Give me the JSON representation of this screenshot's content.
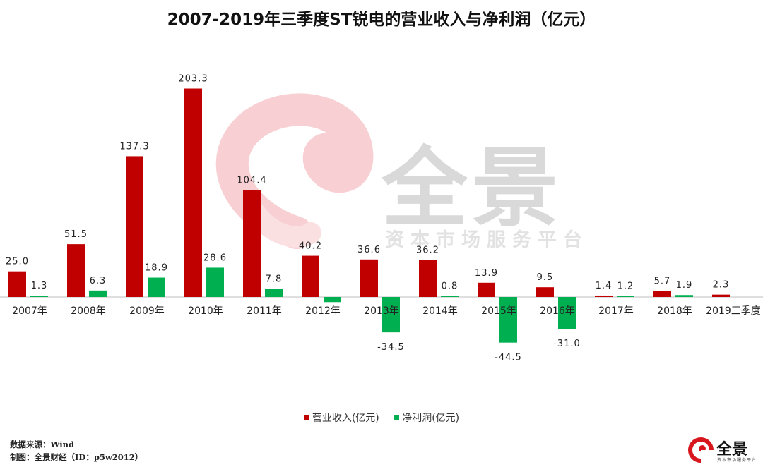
{
  "title": "2007-2019年三季度ST锐电的营业收入与净利润（亿元）",
  "watermark": {
    "brand": "全景",
    "subtitle": "资本市场服务平台"
  },
  "chart_data": {
    "type": "bar",
    "title": "2007-2019年三季度ST锐电的营业收入与净利润（亿元）",
    "categories": [
      "2007年",
      "2008年",
      "2009年",
      "2010年",
      "2011年",
      "2012年",
      "2013年",
      "2014年",
      "2015年",
      "2016年",
      "2017年",
      "2018年",
      "2019三季度"
    ],
    "series": [
      {
        "name": "营业收入(亿元)",
        "color": "#c00000",
        "values": [
          25.0,
          51.5,
          137.3,
          203.3,
          104.4,
          40.2,
          36.6,
          36.2,
          13.9,
          9.5,
          1.4,
          5.7,
          2.3
        ],
        "labels": [
          "25.0",
          "51.5",
          "137.3",
          "203.3",
          "104.4",
          "40.2",
          "36.6",
          "36.2",
          "13.9",
          "9.5",
          "1.4",
          "5.7",
          "2.3"
        ]
      },
      {
        "name": "净利润(亿元)",
        "color": "#00b050",
        "values": [
          1.3,
          6.3,
          18.9,
          28.6,
          7.8,
          -5.0,
          -34.5,
          0.8,
          -44.5,
          -31.0,
          1.2,
          1.9,
          null
        ],
        "labels": [
          "1.3",
          "6.3",
          "18.9",
          "28.6",
          "7.8",
          "",
          "-34.5",
          "0.8",
          "-44.5",
          "-31.0",
          "1.2",
          "1.9",
          ""
        ]
      }
    ],
    "xlabel": "",
    "ylabel": "",
    "ylim": [
      -50,
      210
    ],
    "grid": false,
    "legend_position": "bottom"
  },
  "footer": {
    "source": "数据来源：Wind",
    "credit": "制图：全景财经（ID：p5w2012）"
  },
  "logo": {
    "name": "全景",
    "subtitle": "资本市场服务平台"
  }
}
